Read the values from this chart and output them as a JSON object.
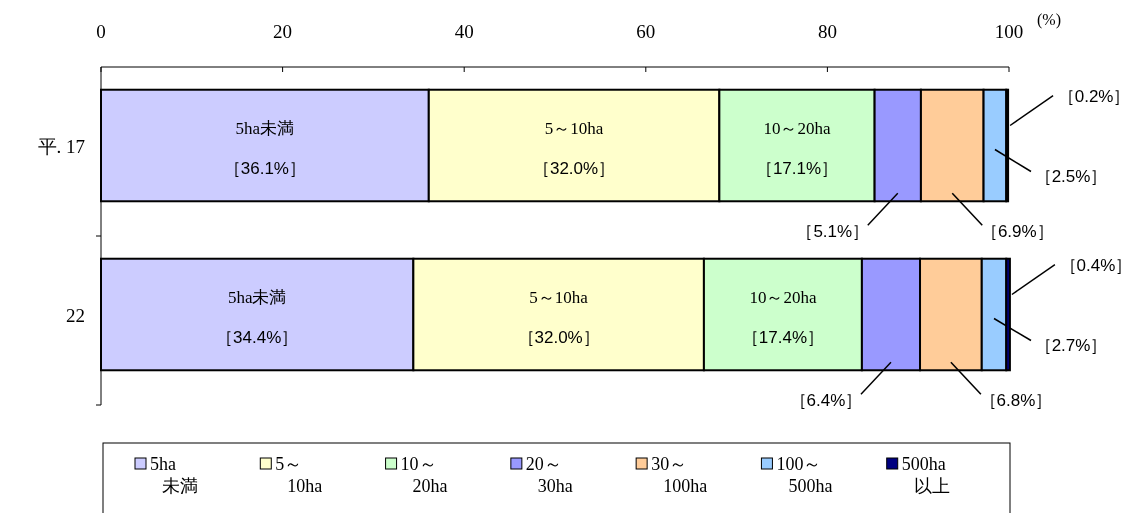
{
  "chart_data": {
    "type": "bar",
    "orientation": "horizontal",
    "stacked": true,
    "categories": [
      "平. 17",
      "22"
    ],
    "xlim": [
      0,
      100
    ],
    "xticks": [
      0,
      20,
      40,
      60,
      80,
      100
    ],
    "xlabel": "(%)",
    "legend": "bottom",
    "grid": false,
    "series": [
      {
        "name": "5ha\n未満",
        "color": "#ccccff",
        "values": [
          36.1,
          34.4
        ],
        "value_labels": [
          "［36.1%］",
          "［34.4%］"
        ]
      },
      {
        "name": "5～\n10ha",
        "color": "#ffffcc",
        "values": [
          32.0,
          32.0
        ],
        "value_labels": [
          "［32.0%］",
          "［32.0%］"
        ]
      },
      {
        "name": "10～\n20ha",
        "color": "#ccffcc",
        "values": [
          17.1,
          17.4
        ],
        "value_labels": [
          "［17.1%］",
          "［17.4%］"
        ]
      },
      {
        "name": "20～\n30ha",
        "color": "#9999ff",
        "values": [
          5.1,
          6.4
        ],
        "value_labels": [
          "［5.1%］",
          "［6.4%］"
        ]
      },
      {
        "name": "30～\n100ha",
        "color": "#ffcc99",
        "values": [
          6.9,
          6.8
        ],
        "value_labels": [
          "［6.9%］",
          "［6.8%］"
        ]
      },
      {
        "name": "100～\n500ha",
        "color": "#99ccff",
        "values": [
          2.5,
          2.7
        ],
        "value_labels": [
          "［2.5%］",
          "［2.7%］"
        ]
      },
      {
        "name": "500ha\n以上",
        "color": "#000080",
        "values": [
          0.2,
          0.4
        ],
        "value_labels": [
          "［0.2%］",
          "［0.4%］"
        ]
      }
    ],
    "annotations": [
      "5ha未満",
      "5～10ha",
      "10～20ha",
      "5ha未満",
      "5～10ha",
      "10～20ha"
    ]
  }
}
